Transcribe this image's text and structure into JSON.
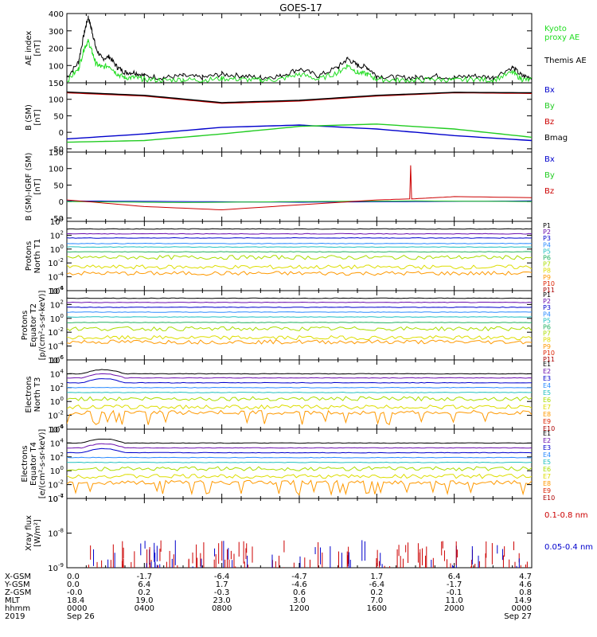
{
  "title": "GOES-17",
  "chart_data": [
    {
      "id": "ae",
      "type": "line",
      "ylabel": "AE index\n[nT]",
      "ylim": [
        0,
        400
      ],
      "yticks": [
        0,
        100,
        200,
        300,
        400
      ],
      "log": false,
      "legend": [
        {
          "name": "Kyoto\nproxy AE",
          "color": "#22dd22"
        },
        {
          "name": "Themis AE",
          "color": "#000000"
        }
      ],
      "series": [
        {
          "name": "Themis AE",
          "color": "#000000",
          "x": [
            0,
            0.6,
            0.9,
            1.1,
            1.3,
            1.5,
            1.8,
            2.2,
            2.6,
            3.0,
            3.5,
            4.0,
            5.0,
            6.0,
            7.0,
            8.0,
            9.0,
            10.0,
            11.0,
            12.0,
            13.0,
            14.0,
            14.5,
            15.0,
            15.5,
            16.0,
            17.0,
            18.0,
            19.0,
            20.0,
            21.0,
            22.0,
            23.0,
            23.5,
            24.0
          ],
          "y": [
            30,
            120,
            290,
            380,
            300,
            200,
            140,
            150,
            90,
            60,
            60,
            40,
            30,
            40,
            30,
            50,
            40,
            30,
            40,
            80,
            40,
            90,
            140,
            100,
            90,
            40,
            30,
            30,
            40,
            30,
            40,
            30,
            90,
            40,
            30
          ]
        },
        {
          "name": "Kyoto proxy AE",
          "color": "#22dd22",
          "x": [
            0,
            0.6,
            0.9,
            1.1,
            1.3,
            1.5,
            1.8,
            2.2,
            2.6,
            3.0,
            3.5,
            4.0,
            5.0,
            6.0,
            7.0,
            8.0,
            9.0,
            10.0,
            11.0,
            12.0,
            13.0,
            14.0,
            14.5,
            15.0,
            15.5,
            16.0,
            17.0,
            18.0,
            19.0,
            20.0,
            21.0,
            22.0,
            23.0,
            23.5,
            24.0
          ],
          "y": [
            10,
            80,
            200,
            240,
            180,
            110,
            90,
            100,
            50,
            30,
            30,
            20,
            15,
            20,
            15,
            25,
            20,
            15,
            20,
            50,
            20,
            60,
            100,
            60,
            50,
            20,
            15,
            15,
            20,
            15,
            20,
            15,
            60,
            20,
            15
          ]
        }
      ]
    },
    {
      "id": "bsm",
      "type": "line",
      "ylabel": "B (SM)\n[nT]",
      "ylim": [
        -60,
        150
      ],
      "yticks": [
        -50,
        0,
        50,
        100,
        150
      ],
      "log": false,
      "legend": [
        {
          "name": "Bx",
          "color": "#0000cc"
        },
        {
          "name": "By",
          "color": "#22cc22"
        },
        {
          "name": "Bz",
          "color": "#cc0000"
        },
        {
          "name": "Bmag",
          "color": "#000000"
        }
      ],
      "series": [
        {
          "name": "Bx",
          "color": "#0000cc",
          "x": [
            0,
            4,
            8,
            12,
            16,
            20,
            24
          ],
          "y": [
            -20,
            -5,
            15,
            22,
            10,
            -10,
            -25
          ]
        },
        {
          "name": "By",
          "color": "#22cc22",
          "x": [
            0,
            4,
            8,
            12,
            16,
            20,
            24
          ],
          "y": [
            -30,
            -25,
            -5,
            18,
            25,
            10,
            -15
          ]
        },
        {
          "name": "Bz",
          "color": "#cc0000",
          "x": [
            0,
            4,
            8,
            12,
            16,
            20,
            24
          ],
          "y": [
            120,
            110,
            88,
            95,
            110,
            120,
            118
          ]
        },
        {
          "name": "Bmag",
          "color": "#000000",
          "x": [
            0,
            4,
            8,
            12,
            16,
            20,
            24
          ],
          "y": [
            122,
            112,
            90,
            97,
            112,
            121,
            120
          ]
        }
      ]
    },
    {
      "id": "bdiff",
      "type": "line",
      "ylabel": "B (SM)-IGRF (SM)\n[nT]",
      "ylim": [
        -60,
        150
      ],
      "yticks": [
        -50,
        0,
        50,
        100,
        150
      ],
      "log": false,
      "legend": [
        {
          "name": "Bx",
          "color": "#0000cc"
        },
        {
          "name": "By",
          "color": "#22cc22"
        },
        {
          "name": "Bz",
          "color": "#cc0000"
        }
      ],
      "series": [
        {
          "name": "Bx",
          "color": "#0000cc",
          "x": [
            0,
            6,
            12,
            18,
            24
          ],
          "y": [
            2,
            0,
            -2,
            0,
            2
          ]
        },
        {
          "name": "By",
          "color": "#22cc22",
          "x": [
            0,
            6,
            12,
            18,
            24
          ],
          "y": [
            0,
            -3,
            0,
            2,
            0
          ]
        },
        {
          "name": "Bz",
          "color": "#cc0000",
          "x": [
            0,
            4,
            8,
            12,
            16,
            17.7,
            17.75,
            17.8,
            20,
            24
          ],
          "y": [
            5,
            -15,
            -25,
            -10,
            5,
            8,
            110,
            8,
            15,
            12
          ]
        }
      ]
    },
    {
      "id": "pnt1",
      "type": "line",
      "ylabel": "Protons\nNorth T1",
      "log": true,
      "ylim_exp": [
        -6,
        4
      ],
      "yticks_exp": [
        -6,
        -4,
        -2,
        0,
        2,
        4
      ],
      "legend": [
        {
          "name": "P1",
          "color": "#000000"
        },
        {
          "name": "P2",
          "color": "#6a0dad"
        },
        {
          "name": "P3",
          "color": "#0000cc"
        },
        {
          "name": "P4",
          "color": "#2a8bff"
        },
        {
          "name": "P5",
          "color": "#20c0c0"
        },
        {
          "name": "P6",
          "color": "#20b060"
        },
        {
          "name": "P7",
          "color": "#aadd00"
        },
        {
          "name": "P8",
          "color": "#dddd00"
        },
        {
          "name": "P9",
          "color": "#ff9900"
        },
        {
          "name": "P10",
          "color": "#dd2200"
        },
        {
          "name": "P11",
          "color": "#aa0000"
        }
      ],
      "levels_exp": [
        2.9,
        2.2,
        1.6,
        0.8,
        0.3,
        -0.4,
        -1.2,
        -2.6,
        -3.5
      ]
    },
    {
      "id": "pet2",
      "type": "line",
      "ylabel": "Protons\nEquator T2\n[p/(cm²-s-sr-keV)]",
      "log": true,
      "ylim_exp": [
        -6,
        4
      ],
      "yticks_exp": [
        -6,
        -4,
        -2,
        0,
        2,
        4
      ],
      "legend": [
        {
          "name": "P1",
          "color": "#000000"
        },
        {
          "name": "P2",
          "color": "#6a0dad"
        },
        {
          "name": "P3",
          "color": "#0000cc"
        },
        {
          "name": "P4",
          "color": "#2a8bff"
        },
        {
          "name": "P5",
          "color": "#20c0c0"
        },
        {
          "name": "P6",
          "color": "#20b060"
        },
        {
          "name": "P7",
          "color": "#aadd00"
        },
        {
          "name": "P8",
          "color": "#dddd00"
        },
        {
          "name": "P9",
          "color": "#ff9900"
        },
        {
          "name": "P10",
          "color": "#dd2200"
        },
        {
          "name": "P11",
          "color": "#aa0000"
        }
      ],
      "levels_exp": [
        2.9,
        2.3,
        1.6,
        0.9,
        0.2,
        -0.6,
        -1.5,
        -2.8,
        -3.4
      ]
    },
    {
      "id": "ent3",
      "type": "line",
      "ylabel": "Electrons\nNorth T3",
      "log": true,
      "ylim_exp": [
        -4,
        6
      ],
      "yticks_exp": [
        -4,
        -2,
        0,
        2,
        4,
        6
      ],
      "legend": [
        {
          "name": "E1",
          "color": "#000000"
        },
        {
          "name": "E2",
          "color": "#6a0dad"
        },
        {
          "name": "E3",
          "color": "#0000cc"
        },
        {
          "name": "E4",
          "color": "#2a8bff"
        },
        {
          "name": "E5",
          "color": "#20c0c0"
        },
        {
          "name": "E6",
          "color": "#aadd00"
        },
        {
          "name": "E7",
          "color": "#dddd00"
        },
        {
          "name": "E8",
          "color": "#ff9900"
        },
        {
          "name": "E9",
          "color": "#dd2200"
        },
        {
          "name": "E10",
          "color": "#aa0000"
        }
      ],
      "levels_exp": [
        4.0,
        3.4,
        2.7,
        2.0,
        1.3,
        0.4,
        -0.8,
        -1.6
      ]
    },
    {
      "id": "eet4",
      "type": "line",
      "ylabel": "Electrons\nEquator T4\n[e/(cm²-s-sr-keV)]",
      "log": true,
      "ylim_exp": [
        -4,
        6
      ],
      "yticks_exp": [
        -4,
        -2,
        0,
        2,
        4,
        6
      ],
      "legend": [
        {
          "name": "E1",
          "color": "#000000"
        },
        {
          "name": "E2",
          "color": "#6a0dad"
        },
        {
          "name": "E3",
          "color": "#0000cc"
        },
        {
          "name": "E4",
          "color": "#2a8bff"
        },
        {
          "name": "E5",
          "color": "#20c0c0"
        },
        {
          "name": "E6",
          "color": "#aadd00"
        },
        {
          "name": "E7",
          "color": "#dddd00"
        },
        {
          "name": "E8",
          "color": "#ff9900"
        },
        {
          "name": "E9",
          "color": "#dd2200"
        },
        {
          "name": "E10",
          "color": "#aa0000"
        }
      ],
      "levels_exp": [
        4.0,
        3.3,
        2.6,
        1.9,
        1.2,
        0.3,
        -0.8,
        -1.7
      ]
    },
    {
      "id": "xray",
      "type": "scatter",
      "ylabel": "Xray flux\n[W/m²]",
      "log": true,
      "ylim_exp": [
        -9,
        -7
      ],
      "yticks_exp": [
        -9,
        -8,
        -7
      ],
      "legend": [
        {
          "name": "0.1-0.8 nm",
          "color": "#cc0000"
        },
        {
          "name": "0.05-0.4 nm",
          "color": "#0000cc"
        }
      ]
    }
  ],
  "footer": {
    "rows": [
      {
        "label": "X-GSM",
        "values": [
          "0.0",
          "-1.7",
          "-6.4",
          "-4.7",
          "1.7",
          "6.4",
          "4.7"
        ]
      },
      {
        "label": "Y-GSM",
        "values": [
          "0.0",
          "6.4",
          "1.7",
          "-4.6",
          "-6.4",
          "-1.7",
          "4.6"
        ]
      },
      {
        "label": "Z-GSM",
        "values": [
          "-0.0",
          "0.2",
          "-0.3",
          "0.6",
          "0.2",
          "-0.1",
          "0.8"
        ]
      },
      {
        "label": "MLT",
        "values": [
          "18.4",
          "19.0",
          "23.0",
          "3.0",
          "7.0",
          "11.0",
          "14.9"
        ]
      },
      {
        "label": "hhmm",
        "values": [
          "0000",
          "0400",
          "0800",
          "1200",
          "1600",
          "2000",
          "0000"
        ]
      }
    ],
    "year": "2019",
    "start_date": "Sep 26",
    "end_date": "Sep 27"
  }
}
